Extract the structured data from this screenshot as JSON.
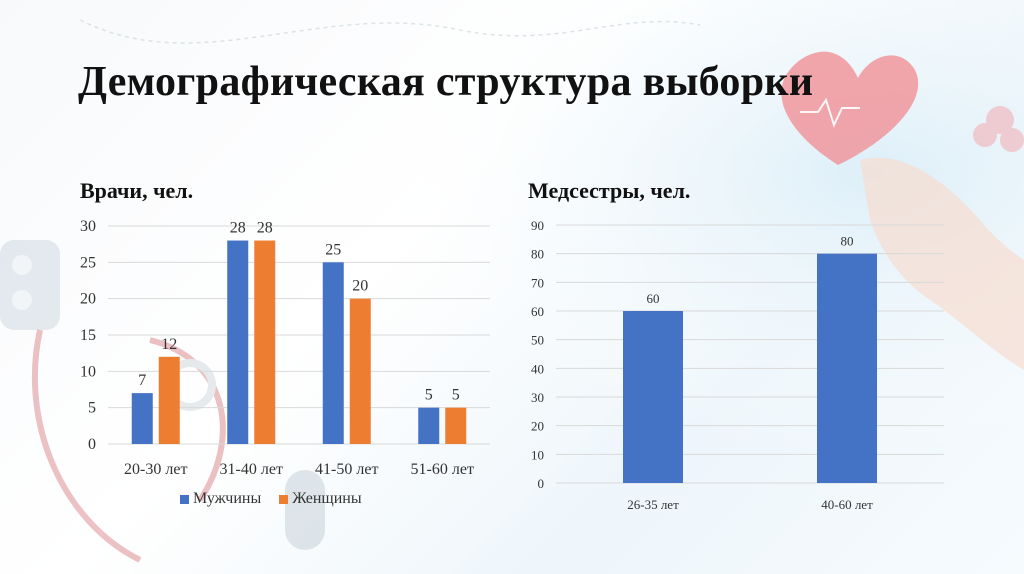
{
  "slide": {
    "title": "Демографическая структура выборки"
  },
  "colors": {
    "male": "#4472C4",
    "female": "#ED7D31",
    "grid": "#d9d9d9",
    "axis_text": "#333333"
  },
  "chart_data": [
    {
      "type": "bar",
      "title": "Врачи, чел.",
      "categories": [
        "20-30 лет",
        "31-40 лет",
        "41-50 лет",
        "51-60 лет"
      ],
      "series": [
        {
          "name": "Мужчины",
          "values": [
            7,
            28,
            25,
            5
          ]
        },
        {
          "name": "Женщины",
          "values": [
            12,
            28,
            20,
            5
          ]
        }
      ],
      "ylim": [
        0,
        30
      ],
      "yticks": [
        0,
        5,
        10,
        15,
        20,
        25,
        30
      ],
      "grid": true,
      "legend": "bottom"
    },
    {
      "type": "bar",
      "title": "Медсестры, чел.",
      "categories": [
        "26-35 лет",
        "40-60 лет"
      ],
      "series": [
        {
          "values": [
            60,
            80
          ]
        }
      ],
      "ylim": [
        0,
        90
      ],
      "yticks": [
        0,
        10,
        20,
        30,
        40,
        50,
        60,
        70,
        80,
        90
      ],
      "grid": true,
      "legend": "none"
    }
  ]
}
